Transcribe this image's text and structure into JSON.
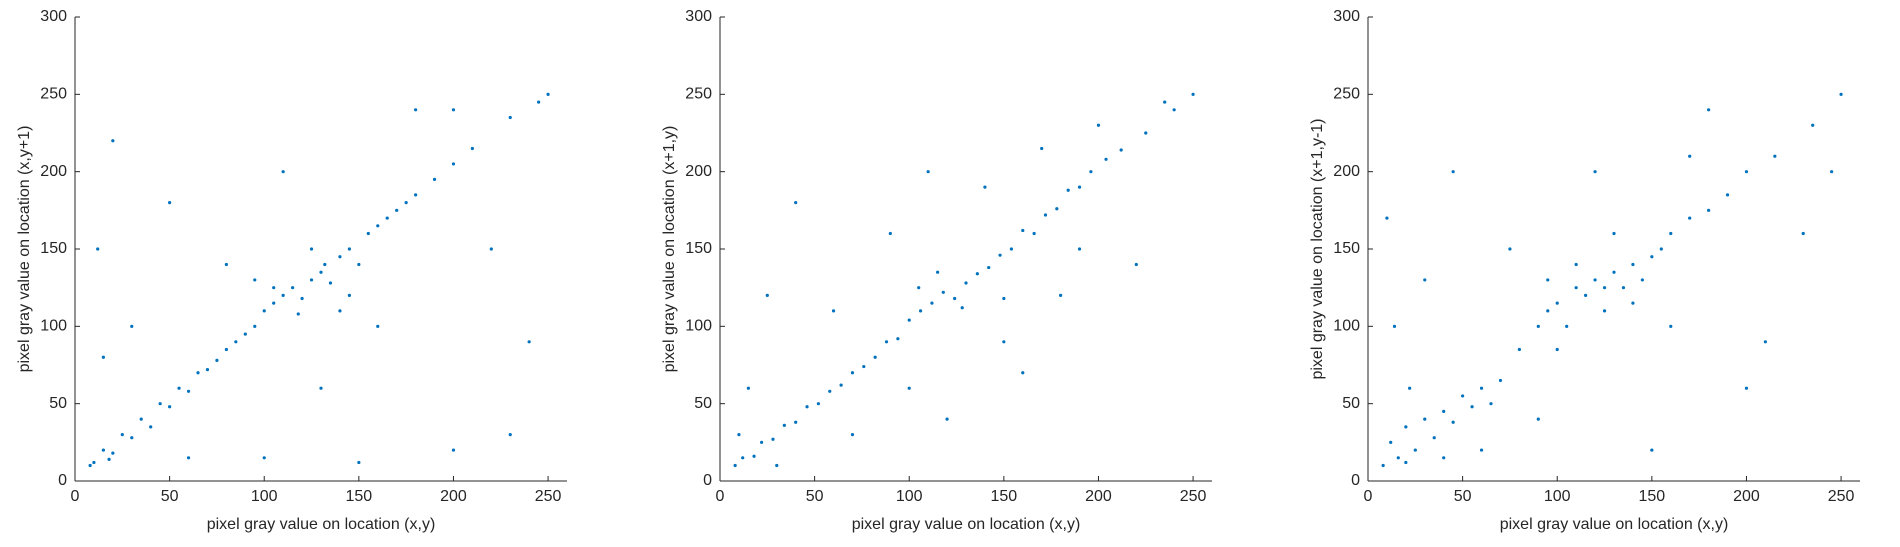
{
  "chart_data": [
    {
      "type": "scatter",
      "xlabel": "pixel gray value on location (x,y)",
      "ylabel": "pixel gray value on location (x,y+1)",
      "color": "#0072bd",
      "xlim": [
        0,
        260
      ],
      "ylim": [
        0,
        300
      ],
      "xticks": [
        0,
        50,
        100,
        150,
        200,
        250
      ],
      "yticks": [
        0,
        50,
        100,
        150,
        200,
        250,
        300
      ],
      "x": [
        10,
        15,
        20,
        25,
        30,
        35,
        40,
        45,
        50,
        55,
        60,
        65,
        70,
        75,
        80,
        85,
        90,
        95,
        100,
        105,
        110,
        115,
        120,
        125,
        130,
        135,
        140,
        145,
        150,
        155,
        160,
        165,
        170,
        175,
        180,
        190,
        200,
        210,
        230,
        245,
        250,
        12,
        20,
        30,
        60,
        100,
        150,
        200,
        220,
        240,
        180,
        110,
        130,
        80,
        160,
        50,
        15,
        230,
        200,
        95,
        140,
        125,
        8,
        18,
        105,
        118,
        132,
        145
      ],
      "y": [
        12,
        20,
        18,
        30,
        28,
        40,
        35,
        50,
        48,
        60,
        58,
        70,
        72,
        78,
        85,
        90,
        95,
        100,
        110,
        115,
        120,
        125,
        118,
        130,
        135,
        128,
        145,
        150,
        140,
        160,
        165,
        170,
        175,
        180,
        185,
        195,
        205,
        215,
        235,
        245,
        250,
        150,
        220,
        100,
        15,
        15,
        12,
        20,
        150,
        90,
        240,
        200,
        60,
        140,
        100,
        180,
        80,
        30,
        240,
        130,
        110,
        150,
        10,
        14,
        125,
        108,
        140,
        120
      ]
    },
    {
      "type": "scatter",
      "xlabel": "pixel gray value on location (x,y)",
      "ylabel": "pixel gray value on location (x+1,y)",
      "color": "#0072bd",
      "xlim": [
        0,
        260
      ],
      "ylim": [
        0,
        300
      ],
      "xticks": [
        0,
        50,
        100,
        150,
        200,
        250
      ],
      "yticks": [
        0,
        50,
        100,
        150,
        200,
        250,
        300
      ],
      "x": [
        8,
        12,
        18,
        22,
        28,
        34,
        40,
        46,
        52,
        58,
        64,
        70,
        76,
        82,
        88,
        94,
        100,
        106,
        112,
        118,
        124,
        130,
        136,
        142,
        148,
        154,
        160,
        166,
        172,
        178,
        184,
        190,
        196,
        204,
        212,
        225,
        240,
        250,
        15,
        25,
        40,
        70,
        90,
        120,
        150,
        180,
        200,
        220,
        60,
        110,
        160,
        30,
        140,
        100,
        170,
        190,
        235,
        10,
        105,
        128,
        115,
        150
      ],
      "y": [
        10,
        15,
        16,
        25,
        27,
        36,
        38,
        48,
        50,
        58,
        62,
        70,
        74,
        80,
        90,
        92,
        104,
        110,
        115,
        122,
        118,
        128,
        134,
        138,
        146,
        150,
        162,
        160,
        172,
        176,
        188,
        190,
        200,
        208,
        214,
        225,
        240,
        250,
        60,
        120,
        180,
        30,
        160,
        40,
        90,
        120,
        230,
        140,
        110,
        200,
        70,
        10,
        190,
        60,
        215,
        150,
        245,
        30,
        125,
        112,
        135,
        118
      ]
    },
    {
      "type": "scatter",
      "xlabel": "pixel gray value on location (x,y)",
      "ylabel": "pixel gray value on location (x+1,y-1)",
      "color": "#0072bd",
      "xlim": [
        0,
        260
      ],
      "ylim": [
        0,
        300
      ],
      "xticks": [
        0,
        50,
        100,
        150,
        200,
        250
      ],
      "yticks": [
        0,
        50,
        100,
        150,
        200,
        250,
        300
      ],
      "x": [
        8,
        12,
        16,
        20,
        25,
        30,
        35,
        40,
        45,
        50,
        55,
        60,
        65,
        70,
        80,
        90,
        95,
        100,
        105,
        110,
        115,
        120,
        125,
        130,
        135,
        140,
        145,
        150,
        155,
        160,
        170,
        180,
        190,
        200,
        215,
        235,
        250,
        10,
        14,
        22,
        30,
        45,
        60,
        90,
        120,
        150,
        180,
        210,
        230,
        245,
        20,
        40,
        100,
        130,
        160,
        200,
        75,
        110,
        140,
        125,
        95,
        170
      ],
      "y": [
        10,
        25,
        15,
        35,
        20,
        40,
        28,
        45,
        38,
        55,
        48,
        60,
        50,
        65,
        85,
        100,
        110,
        115,
        100,
        125,
        120,
        130,
        110,
        135,
        125,
        140,
        130,
        145,
        150,
        160,
        170,
        175,
        185,
        200,
        210,
        230,
        250,
        170,
        100,
        60,
        130,
        200,
        20,
        40,
        200,
        20,
        240,
        90,
        160,
        200,
        12,
        15,
        85,
        160,
        100,
        60,
        150,
        140,
        115,
        125,
        130,
        210
      ]
    }
  ]
}
